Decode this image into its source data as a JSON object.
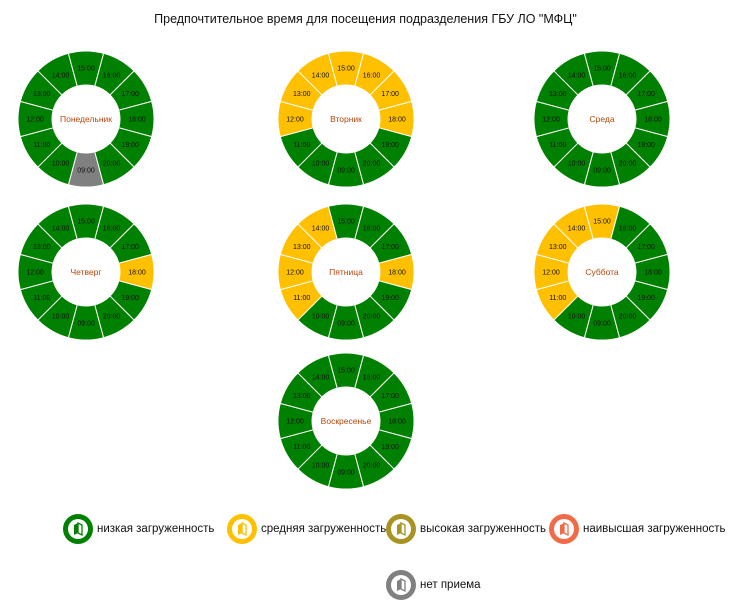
{
  "chart_data": {
    "type": "pie",
    "title": "Предпочтительное время для посещения подразделения ГБУ ЛО \"МФЦ\"",
    "hours": [
      "09:00",
      "10:00",
      "11:00",
      "12:00",
      "13:00",
      "14:00",
      "15:00",
      "16:00",
      "17:00",
      "18:00",
      "19:00",
      "20:00"
    ],
    "colors": {
      "low": "#008000",
      "medium": "#FFC000",
      "high": "#A89422",
      "highest": "#F26B46",
      "none": "#808080"
    },
    "days": [
      {
        "name": "Понедельник",
        "levels": [
          "none",
          "low",
          "low",
          "low",
          "low",
          "low",
          "low",
          "low",
          "low",
          "low",
          "low",
          "low"
        ]
      },
      {
        "name": "Вторник",
        "levels": [
          "low",
          "low",
          "low",
          "medium",
          "medium",
          "medium",
          "medium",
          "medium",
          "medium",
          "medium",
          "low",
          "low"
        ]
      },
      {
        "name": "Среда",
        "levels": [
          "low",
          "low",
          "low",
          "low",
          "low",
          "low",
          "low",
          "low",
          "low",
          "low",
          "low",
          "low"
        ]
      },
      {
        "name": "Четверг",
        "levels": [
          "low",
          "low",
          "low",
          "low",
          "low",
          "low",
          "low",
          "low",
          "low",
          "medium",
          "low",
          "low"
        ]
      },
      {
        "name": "Пятница",
        "levels": [
          "low",
          "low",
          "medium",
          "medium",
          "medium",
          "medium",
          "low",
          "low",
          "low",
          "medium",
          "low",
          "low"
        ]
      },
      {
        "name": "Суббота",
        "levels": [
          "low",
          "low",
          "medium",
          "medium",
          "medium",
          "medium",
          "medium",
          "low",
          "low",
          "low",
          "low",
          "low"
        ]
      },
      {
        "name": "Воскресенье",
        "levels": [
          "low",
          "low",
          "low",
          "low",
          "low",
          "low",
          "low",
          "low",
          "low",
          "low",
          "low",
          "low"
        ]
      }
    ],
    "legend": [
      {
        "key": "low",
        "label": "низкая загруженность"
      },
      {
        "key": "medium",
        "label": "средняя загруженность"
      },
      {
        "key": "high",
        "label": "высокая загруженность"
      },
      {
        "key": "highest",
        "label": "наивысшая загруженность"
      },
      {
        "key": "none",
        "label": "нет приема"
      }
    ]
  }
}
